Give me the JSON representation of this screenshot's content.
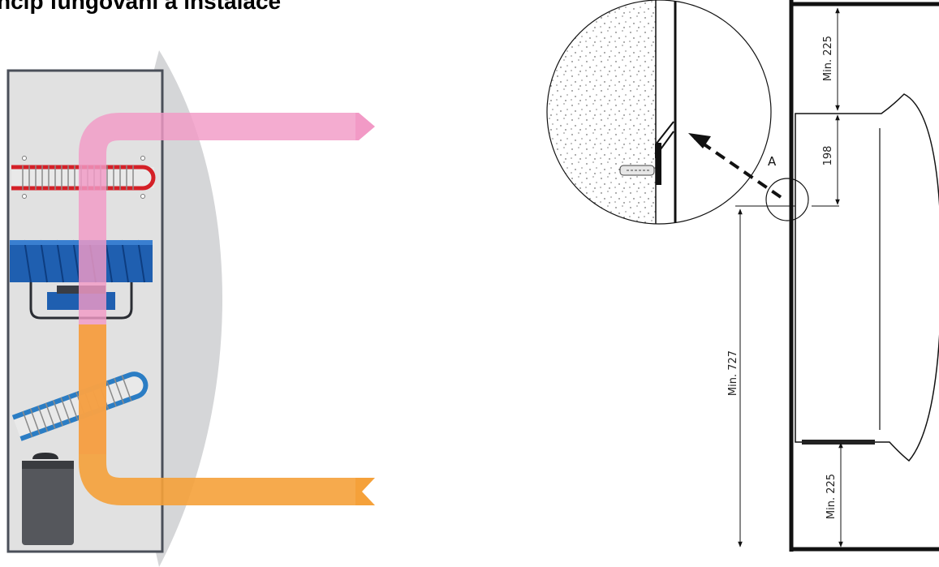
{
  "header": {
    "title": "ncip fungování a instalace"
  },
  "installation": {
    "detail_label": "A",
    "dimensions": {
      "top_clearance": "Min. 225",
      "unit_offset": "198",
      "floor_height": "Min. 727",
      "bottom_clearance": "Min. 225"
    }
  },
  "colors": {
    "hot_air": "#f29ac6",
    "cold_air": "#f5a13a",
    "heater_coil": "#d42027",
    "evaporator_coil": "#2b7dc4",
    "fan": "#1f5fb0",
    "cabinet": "#e1e1e1",
    "cabinet_border": "#4a4f59",
    "compressor": "#55575c"
  },
  "icons": {
    "heater": "heater-coil-icon",
    "fan": "fan-icon",
    "evaporator": "evaporator-coil-icon",
    "compressor": "compressor-icon"
  }
}
